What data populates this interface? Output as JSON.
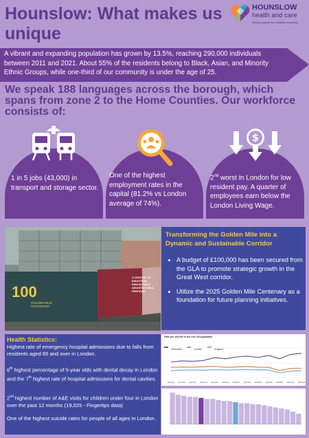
{
  "header": {
    "title": "Hounslow: What makes us unique",
    "logo_name": "HOUNSLOW",
    "logo_sub": "health and care",
    "logo_tagline": "Working together for a healthier community"
  },
  "intro": "A vibrant and expanding population has grown by 13.5%, reaching 290,000 individuals between 2011 and 2021. About 55% of the residents belong to Black, Asian, and Minority Ethnic Groups, while one-third of our community is under the age of 25.",
  "subheading": "We speak 188 languages across the borough, which spans from zone 2 to the Home Counties. Our workforce consists of:",
  "cards": [
    {
      "icon": "transport-icon",
      "text": "1 in 5 jobs (43,000) in transport and storage sector."
    },
    {
      "icon": "employment-search-icon",
      "text": "One of the highest employment rates in the capital (81.2% vs London average of 74%)."
    },
    {
      "icon": "low-pay-icon",
      "sup": "nd",
      "text_a": "2",
      "text_b": " worst in London for low resident pay. A quarter of employees earn below the London Living Wage."
    }
  ],
  "photo": {
    "logo_text": "GOLDEN MILE CENTENARY",
    "logo_number": "100",
    "poster_text": "A CENTURY OF INDUSTRIAL INNOVATION & ARCHITECTURAL HERITAGE."
  },
  "golden_mile": {
    "title": "Transforming the Golden Mile into a Dynamic and Sustainable Corridor",
    "bullets": [
      "A budget of £100,000 has been secured from the GLA to promote strategic growth in the Great West corridor.",
      "Utilize the 2025 Golden Mile Centenary as a foundation for future planning initiatives."
    ]
  },
  "health": {
    "title": "Health Statistics:",
    "stat1": "Highest rate of emergency hospital admissions due to falls from residents aged 65 and over in London.",
    "stat2_a": "6",
    "stat2_sup1": "th",
    "stat2_b": " highest percentage of 5-year olds with dental decay in London and the 7",
    "stat2_sup2": "th",
    "stat2_c": " highest rate of hospital admissions for dental cavities.",
    "stat3_a": "2",
    "stat3_sup": "nd",
    "stat3_b": " highest number of A&E visits for children under four in London over the past 12 months (19,025 - Fingertips data)",
    "stat4": "One of the highest suicide rates for people of all ages in London."
  },
  "colors": {
    "background": "#b39ad1",
    "purple": "#6f3f97",
    "title_purple": "#5e3a8c",
    "navy": "#3f4a9e",
    "gold": "#f3c84b"
  },
  "chart_data": [
    {
      "type": "line",
      "title": "Falls per 100,000 in the over 65 population",
      "x": [
        "2010/11",
        "2011/12",
        "2012/13",
        "2013/14",
        "2014/15",
        "2015/16",
        "2016/17",
        "2017/18",
        "2018/19",
        "2019/20",
        "2020/21",
        "2021/22",
        "2022/23"
      ],
      "series": [
        {
          "name": "Hounslow",
          "values": [
            2550,
            2600,
            2580,
            2620,
            2750,
            2700,
            2780,
            2820,
            2760,
            2850,
            2700,
            2900,
            2950
          ],
          "color": "#6b5a8e"
        },
        {
          "name": "London",
          "values": [
            2300,
            2320,
            2310,
            2330,
            2350,
            2300,
            2320,
            2340,
            2310,
            2300,
            2150,
            2250,
            2260
          ],
          "color": "#e0894a"
        },
        {
          "name": "England",
          "values": [
            2150,
            2170,
            2180,
            2170,
            2200,
            2180,
            2190,
            2200,
            2190,
            2180,
            2050,
            2120,
            2150
          ],
          "color": "#7ab0d8"
        }
      ],
      "ylim": [
        1800,
        3200
      ]
    },
    {
      "type": "bar",
      "title": "",
      "values": [
        30,
        28,
        27,
        26,
        26,
        25,
        24,
        24,
        23,
        22,
        22,
        21,
        20,
        20,
        19,
        19,
        18,
        17,
        16,
        15,
        14,
        12,
        10
      ],
      "highlight_index": 5,
      "highlight_color": "#7a3fa0",
      "compare_index": 11,
      "compare_color": "#6fa8d8",
      "bar_color": "#c8b6e2"
    }
  ]
}
